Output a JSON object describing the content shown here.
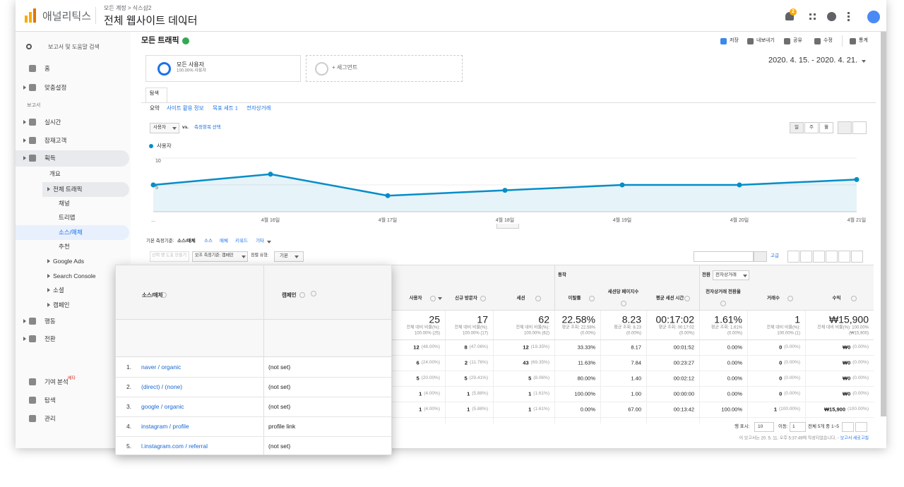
{
  "header": {
    "app": "애널리틱스",
    "breadcrumb": "모든 계정 > 식스샵2",
    "property": "전체 웹사이트 데이터",
    "notifications": "2"
  },
  "sidebar": {
    "search": "보고서 및 도움말 검색",
    "items": [
      "홈",
      "맞춤설정",
      "보고서",
      "실시간",
      "잠재고객",
      "획득",
      "개요",
      "전체 트래픽",
      "채널",
      "트리맵",
      "소스/매체",
      "추천",
      "Google Ads",
      "Search Console",
      "소셜",
      "캠페인",
      "행동",
      "전환",
      "기여 분석",
      "탐색",
      "관리"
    ],
    "beta": "베타"
  },
  "report": {
    "title": "모든 트래픽",
    "actions": [
      "저장",
      "내보내기",
      "공유",
      "수정",
      "통계"
    ],
    "segment": {
      "name": "모든 사용자",
      "share": "100.00% 사용자"
    },
    "add_segment": "+ 세그먼트",
    "date_range": "2020. 4. 15. - 2020. 4. 21.",
    "tab": "탐색",
    "subtabs": [
      "요약",
      "사이트 활용 정보",
      "목표 세트 1",
      "전자상거래"
    ],
    "metric": "사용자",
    "vs": "vs.",
    "metric_select": "측정항목 선택",
    "periods": [
      "일",
      "주",
      "월"
    ]
  },
  "chart_data": {
    "type": "line",
    "categories": [
      "...",
      "4월 16일",
      "4월 17일",
      "4월 18일",
      "4월 19일",
      "4월 20일",
      "4월 21일"
    ],
    "series": [
      {
        "name": "사용자",
        "color": "#058dc7",
        "values": [
          5,
          7,
          3,
          4,
          5,
          5,
          6
        ]
      }
    ],
    "ylim": [
      0,
      10
    ],
    "yticks": [
      5,
      10
    ],
    "grid": true
  },
  "dimensions": {
    "label": "기본 측정기준:",
    "current": "소스/매체",
    "options": [
      "소스",
      "매체",
      "키워드",
      "기타"
    ]
  },
  "controls": {
    "plot_rows": "선택 행 도표 만들기",
    "secondary": "보조 측정기준: 캠페인",
    "sort_label": "정렬 유형:",
    "sort": "기본",
    "advanced": "고급"
  },
  "table": {
    "groups": [
      "동작",
      "전환"
    ],
    "conversion": "전자상거래",
    "columns": [
      "사용자",
      "신규 방문자",
      "세션",
      "이탈률",
      "세션당 페이지수",
      "평균 세션 시간",
      "전자상거래 전환율",
      "거래수",
      "수익"
    ],
    "totals": [
      {
        "value": "25",
        "sub": [
          "전체 대비 비율(%):",
          "100.00% (25)"
        ]
      },
      {
        "value": "17",
        "sub": [
          "전체 대비 비율(%):",
          "100.00% (17)"
        ]
      },
      {
        "value": "62",
        "sub": [
          "전체 대비 비율(%):",
          "100.00% (62)"
        ]
      },
      {
        "value": "22.58%",
        "sub": [
          "평균 조회: 22.58%",
          "(0.00%)"
        ]
      },
      {
        "value": "8.23",
        "sub": [
          "평균 조회: 8.23",
          "(0.00%)"
        ]
      },
      {
        "value": "00:17:02",
        "sub": [
          "평균 조회: 00:17:02",
          "(0.00%)"
        ]
      },
      {
        "value": "1.61%",
        "sub": [
          "평균 조회: 1.61%",
          "(0.00%)"
        ]
      },
      {
        "value": "1",
        "sub": [
          "전체 대비 비율(%):",
          "100.00% (1)"
        ]
      },
      {
        "value": "₩15,900",
        "sub": [
          "전체 대비 비율(%): 100.00%",
          "(₩15,900)"
        ]
      }
    ],
    "rows": [
      [
        [
          "12",
          "(48.00%)"
        ],
        [
          "8",
          "(47.06%)"
        ],
        [
          "12",
          "(19.35%)"
        ],
        [
          "33.33%"
        ],
        [
          "8.17"
        ],
        [
          "00:01:52"
        ],
        [
          "0.00%"
        ],
        [
          "0",
          "(0.00%)"
        ],
        [
          "₩0",
          "(0.00%)"
        ]
      ],
      [
        [
          "6",
          "(24.00%)"
        ],
        [
          "2",
          "(11.76%)"
        ],
        [
          "43",
          "(69.35%)"
        ],
        [
          "11.63%"
        ],
        [
          "7.84"
        ],
        [
          "00:23:27"
        ],
        [
          "0.00%"
        ],
        [
          "0",
          "(0.00%)"
        ],
        [
          "₩0",
          "(0.00%)"
        ]
      ],
      [
        [
          "5",
          "(20.00%)"
        ],
        [
          "5",
          "(29.41%)"
        ],
        [
          "5",
          "(8.06%)"
        ],
        [
          "80.00%"
        ],
        [
          "1.40"
        ],
        [
          "00:02:12"
        ],
        [
          "0.00%"
        ],
        [
          "0",
          "(0.00%)"
        ],
        [
          "₩0",
          "(0.00%)"
        ]
      ],
      [
        [
          "1",
          "(4.00%)"
        ],
        [
          "1",
          "(5.88%)"
        ],
        [
          "1",
          "(1.61%)"
        ],
        [
          "100.00%"
        ],
        [
          "1.00"
        ],
        [
          "00:00:00"
        ],
        [
          "0.00%"
        ],
        [
          "0",
          "(0.00%)"
        ],
        [
          "₩0",
          "(0.00%)"
        ]
      ],
      [
        [
          "1",
          "(4.00%)"
        ],
        [
          "1",
          "(5.88%)"
        ],
        [
          "1",
          "(1.61%)"
        ],
        [
          "0.00%"
        ],
        [
          "67.00"
        ],
        [
          "00:13:42"
        ],
        [
          "100.00%"
        ],
        [
          "1",
          "(100.00%)"
        ],
        [
          "₩15,900",
          "(100.00%)"
        ]
      ]
    ]
  },
  "overlay": {
    "columns": [
      "소스/매체",
      "캠페인"
    ],
    "rows": [
      [
        "1.",
        "naver / organic",
        "(not set)"
      ],
      [
        "2.",
        "(direct) / (none)",
        "(not set)"
      ],
      [
        "3.",
        "google / organic",
        "(not set)"
      ],
      [
        "4.",
        "instagram / profile",
        "profile link"
      ],
      [
        "5.",
        "l.instagram.com / referral",
        "(not set)"
      ]
    ]
  },
  "footer": {
    "rows_label": "행 표시:",
    "rows": "10",
    "goto_label": "이동:",
    "goto": "1",
    "range": "전체 5개 중 1~5",
    "note": "이 보고서는 20. 5. 11. 오후 5:37:49에 작성되었습니다. -",
    "refresh": "보고서 새로고침"
  }
}
